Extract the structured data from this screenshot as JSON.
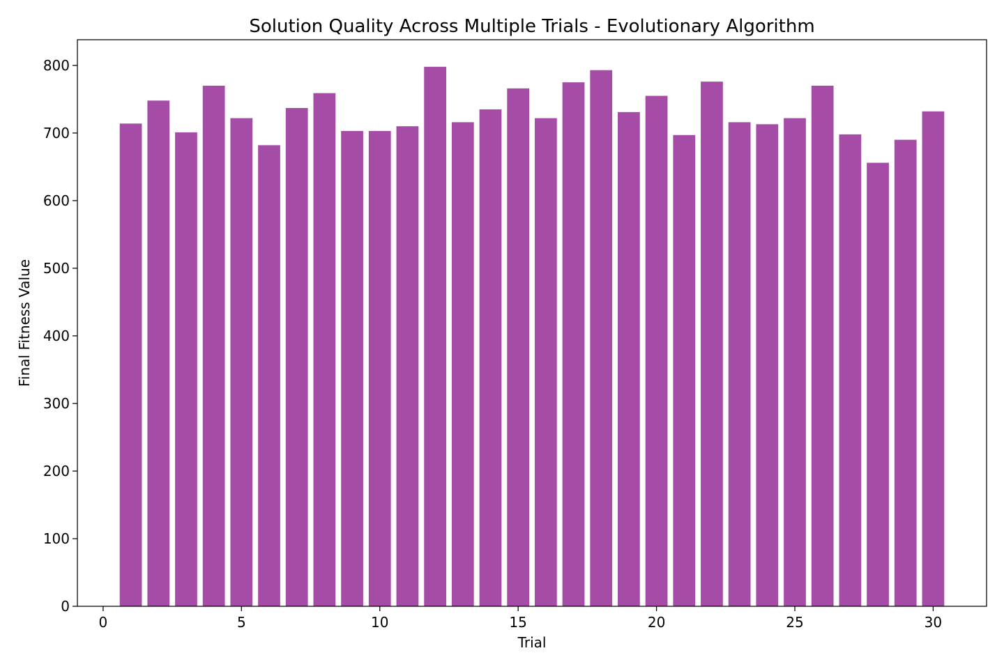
{
  "chart_data": {
    "type": "bar",
    "title": "Solution Quality Across Multiple Trials - Evolutionary Algorithm",
    "xlabel": "Trial",
    "ylabel": "Final Fitness Value",
    "x": [
      1,
      2,
      3,
      4,
      5,
      6,
      7,
      8,
      9,
      10,
      11,
      12,
      13,
      14,
      15,
      16,
      17,
      18,
      19,
      20,
      21,
      22,
      23,
      24,
      25,
      26,
      27,
      28,
      29,
      30
    ],
    "values": [
      714,
      748,
      701,
      770,
      722,
      682,
      737,
      759,
      703,
      703,
      710,
      798,
      716,
      735,
      766,
      722,
      775,
      793,
      731,
      755,
      697,
      776,
      716,
      713,
      722,
      770,
      698,
      656,
      690,
      732
    ],
    "xlim": [
      -0.93,
      31.93
    ],
    "ylim": [
      0,
      838
    ],
    "xticks": [
      0,
      5,
      10,
      15,
      20,
      25,
      30
    ],
    "xtick_labels": [
      "0",
      "5",
      "10",
      "15",
      "20",
      "25",
      "30"
    ],
    "yticks": [
      0,
      100,
      200,
      300,
      400,
      500,
      600,
      700,
      800
    ],
    "ytick_labels": [
      "0",
      "100",
      "200",
      "300",
      "400",
      "500",
      "600",
      "700",
      "800"
    ],
    "bar_width": 0.8,
    "bar_color": "#a54ca7",
    "grid": false,
    "legend": "none"
  }
}
